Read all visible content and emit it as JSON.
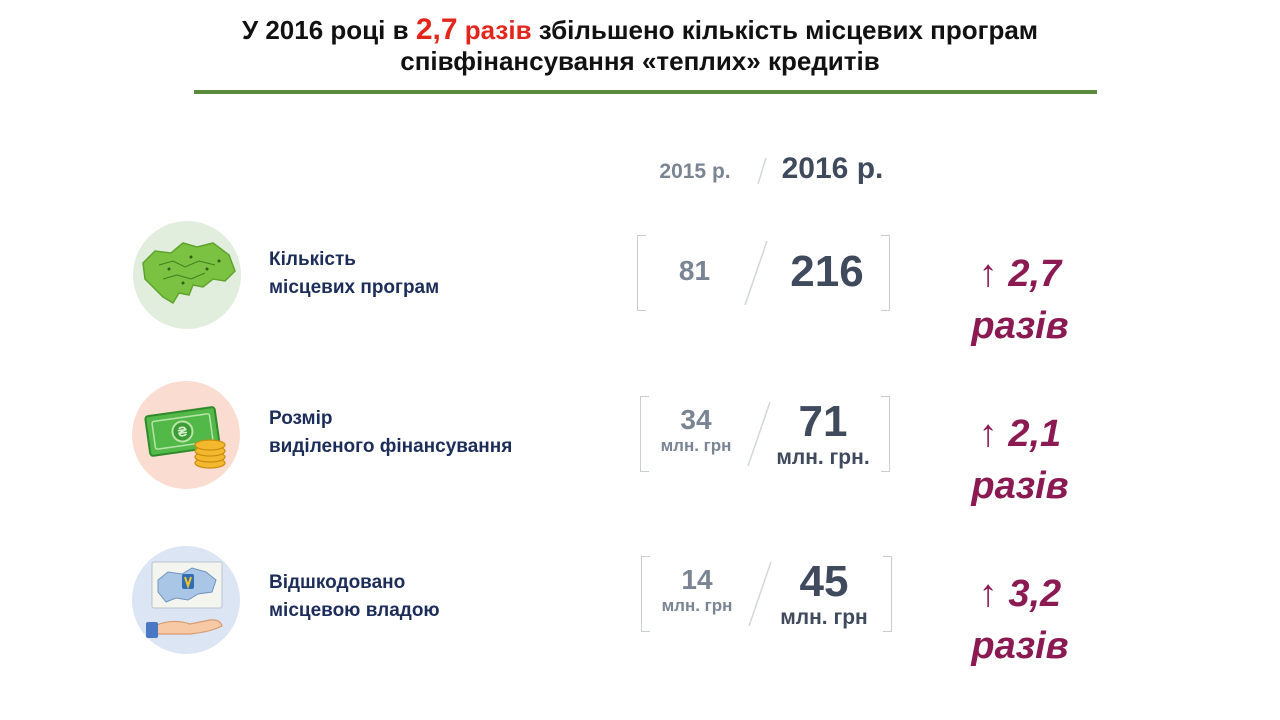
{
  "title": {
    "prefix": "У 2016 році в ",
    "highlight_num": "2,7",
    "highlight_word": "разів",
    "line1_rest": " збільшено кількість місцевих програм",
    "line2": "співфінансування «теплих» кредитів"
  },
  "years": {
    "prev": "2015 р.",
    "curr": "2016 р."
  },
  "rows": [
    {
      "icon": "ukraine-map-icon",
      "label_line1": "Кількість",
      "label_line2": "місцевих програм",
      "value_2015": "81",
      "unit_2015": "",
      "value_2016": "216",
      "unit_2016": "",
      "ratio": "↑ 2,7",
      "ratio_word": "разів"
    },
    {
      "icon": "money-coins-icon",
      "label_line1": "Розмір",
      "label_line2": "виділеного фінансування",
      "value_2015": "34",
      "unit_2015": "млн. грн",
      "value_2016": "71",
      "unit_2016": "млн. грн.",
      "ratio": "↑ 2,1",
      "ratio_word": "разів"
    },
    {
      "icon": "hand-map-icon",
      "label_line1": "Відшкодовано",
      "label_line2": "місцевою владою",
      "value_2015": "14",
      "unit_2015": "млн. грн",
      "value_2016": "45",
      "unit_2016": "млн. грн",
      "ratio": "↑ 3,2",
      "ratio_word": "разів"
    }
  ],
  "colors": {
    "rule": "#5b8a3c",
    "highlight": "#e3261c",
    "ratio": "#8b1a52",
    "label": "#1c2d5a"
  }
}
